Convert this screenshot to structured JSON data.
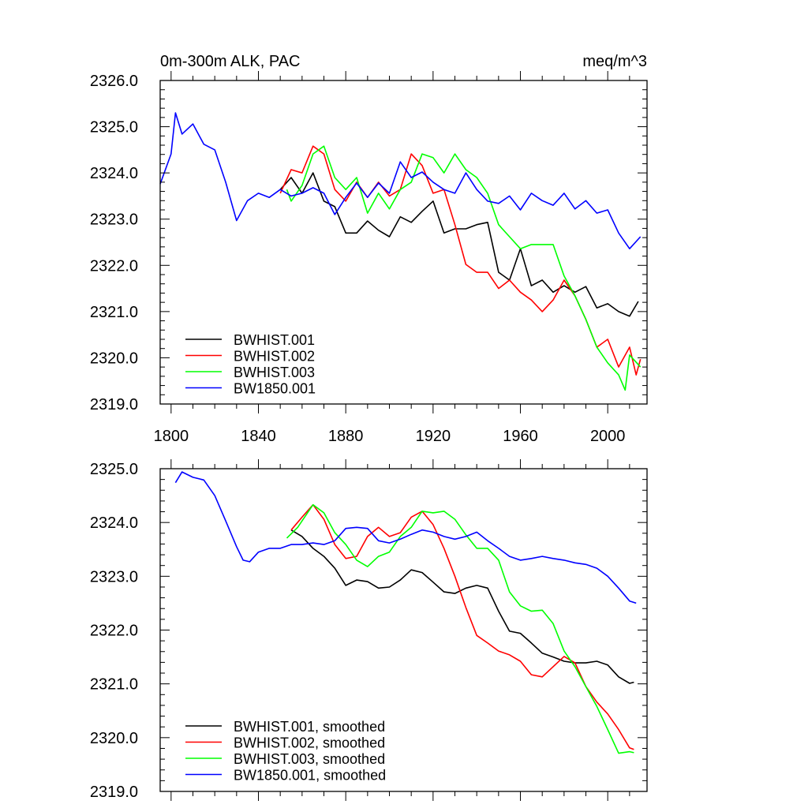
{
  "chart_data": [
    {
      "type": "line",
      "title": "0m-300m ALK, PAC",
      "title_right": "meq/m^3",
      "xlim": [
        1795,
        2018
      ],
      "ylim": [
        2319,
        2326
      ],
      "xticks": [
        1800,
        1840,
        1880,
        1920,
        1960,
        2000
      ],
      "xtick_labels": [
        "1800",
        "1840",
        "1880",
        "1920",
        "1960",
        "2000"
      ],
      "yticks": [
        2319,
        2320,
        2321,
        2322,
        2323,
        2324,
        2325,
        2326
      ],
      "ytick_labels": [
        "2319.0",
        "2320.0",
        "2321.0",
        "2322.0",
        "2323.0",
        "2324.0",
        "2325.0",
        "2326.0"
      ],
      "legend_position": "bottom-left",
      "grid": false,
      "series": [
        {
          "name": "BWHIST.001",
          "color": "#000000",
          "x": [
            1850,
            1855,
            1860,
            1865,
            1870,
            1875,
            1880,
            1885,
            1890,
            1895,
            1900,
            1905,
            1910,
            1915,
            1920,
            1925,
            1930,
            1935,
            1940,
            1945,
            1950,
            1955,
            1960,
            1965,
            1970,
            1975,
            1980,
            1985,
            1990,
            1995,
            2000,
            2005,
            2010,
            2014
          ],
          "y": [
            2323.64,
            2323.9,
            2323.56,
            2324.0,
            2323.39,
            2323.27,
            2322.7,
            2322.7,
            2322.96,
            2322.76,
            2322.62,
            2323.05,
            2322.93,
            2323.17,
            2323.39,
            2322.7,
            2322.79,
            2322.79,
            2322.88,
            2322.93,
            2321.85,
            2321.68,
            2322.36,
            2321.56,
            2321.68,
            2321.42,
            2321.56,
            2321.42,
            2321.54,
            2321.08,
            2321.17,
            2321.0,
            2320.9,
            2321.22
          ]
        },
        {
          "name": "BWHIST.002",
          "color": "#ff0000",
          "x": [
            1850,
            1855,
            1860,
            1865,
            1870,
            1875,
            1880,
            1885,
            1890,
            1895,
            1900,
            1905,
            1910,
            1915,
            1920,
            1925,
            1930,
            1935,
            1940,
            1945,
            1950,
            1955,
            1960,
            1965,
            1970,
            1975,
            1980,
            1985,
            1990,
            1995,
            2000,
            2005,
            2010,
            2013,
            2015
          ],
          "y": [
            2323.56,
            2324.07,
            2324.0,
            2324.58,
            2324.41,
            2323.64,
            2323.39,
            2323.8,
            2323.47,
            2323.8,
            2323.5,
            2323.64,
            2324.41,
            2324.16,
            2323.56,
            2323.64,
            2322.88,
            2322.02,
            2321.85,
            2321.85,
            2321.5,
            2321.68,
            2321.42,
            2321.25,
            2321.0,
            2321.25,
            2321.68,
            2321.34,
            2320.83,
            2320.23,
            2320.4,
            2319.8,
            2320.23,
            2319.63,
            2319.97
          ]
        },
        {
          "name": "BWHIST.003",
          "color": "#00ff00",
          "x": [
            1853,
            1855,
            1860,
            1865,
            1870,
            1875,
            1880,
            1885,
            1890,
            1895,
            1900,
            1905,
            1910,
            1915,
            1920,
            1925,
            1930,
            1935,
            1940,
            1945,
            1950,
            1955,
            1960,
            1965,
            1970,
            1975,
            1980,
            1985,
            1990,
            1995,
            2000,
            2005,
            2008,
            2010,
            2015
          ],
          "y": [
            2323.64,
            2323.39,
            2323.73,
            2324.41,
            2324.58,
            2323.9,
            2323.64,
            2323.9,
            2323.13,
            2323.56,
            2323.22,
            2323.64,
            2323.8,
            2324.41,
            2324.33,
            2324.0,
            2324.41,
            2324.07,
            2323.9,
            2323.56,
            2322.88,
            2322.62,
            2322.36,
            2322.45,
            2322.45,
            2322.45,
            2321.77,
            2321.34,
            2320.83,
            2320.23,
            2319.89,
            2319.63,
            2319.3,
            2320.06,
            2319.8
          ]
        },
        {
          "name": "BW1850.001",
          "color": "#0000ff",
          "x": [
            1795,
            1800,
            1802,
            1805,
            1810,
            1815,
            1820,
            1825,
            1830,
            1835,
            1840,
            1845,
            1850,
            1855,
            1860,
            1865,
            1870,
            1875,
            1880,
            1885,
            1890,
            1895,
            1900,
            1905,
            1910,
            1915,
            1920,
            1925,
            1930,
            1935,
            1940,
            1945,
            1950,
            1955,
            1960,
            1965,
            1970,
            1975,
            1980,
            1985,
            1990,
            1995,
            2000,
            2005,
            2010,
            2015
          ],
          "y": [
            2323.76,
            2324.41,
            2325.3,
            2324.84,
            2325.06,
            2324.62,
            2324.5,
            2323.8,
            2322.97,
            2323.4,
            2323.56,
            2323.47,
            2323.64,
            2323.5,
            2323.56,
            2323.68,
            2323.56,
            2323.1,
            2323.47,
            2323.78,
            2323.47,
            2323.78,
            2323.56,
            2324.24,
            2323.9,
            2324.02,
            2323.8,
            2323.64,
            2323.56,
            2324.0,
            2323.64,
            2323.39,
            2323.34,
            2323.5,
            2323.2,
            2323.56,
            2323.4,
            2323.3,
            2323.56,
            2323.22,
            2323.4,
            2323.13,
            2323.2,
            2322.7,
            2322.36,
            2322.62
          ]
        }
      ]
    },
    {
      "type": "line",
      "xlim": [
        1795,
        2018
      ],
      "ylim": [
        2319,
        2325
      ],
      "xticks": [
        1800,
        1840,
        1880,
        1920,
        1960,
        2000
      ],
      "yticks": [
        2319,
        2320,
        2321,
        2322,
        2323,
        2324,
        2325
      ],
      "ytick_labels": [
        "2319.0",
        "2320.0",
        "2321.0",
        "2322.0",
        "2323.0",
        "2324.0",
        "2325.0"
      ],
      "legend_position": "bottom-left",
      "grid": false,
      "series": [
        {
          "name": "BWHIST.001, smoothed",
          "color": "#000000",
          "x": [
            1855,
            1860,
            1865,
            1870,
            1875,
            1880,
            1885,
            1890,
            1895,
            1900,
            1905,
            1910,
            1915,
            1920,
            1925,
            1930,
            1935,
            1940,
            1945,
            1950,
            1955,
            1960,
            1965,
            1970,
            1975,
            1980,
            1985,
            1990,
            1995,
            2000,
            2005,
            2010,
            2012
          ],
          "y": [
            2323.86,
            2323.74,
            2323.52,
            2323.37,
            2323.15,
            2322.83,
            2322.93,
            2322.9,
            2322.78,
            2322.8,
            2322.93,
            2323.12,
            2323.07,
            2322.89,
            2322.71,
            2322.68,
            2322.78,
            2322.83,
            2322.78,
            2322.35,
            2321.98,
            2321.94,
            2321.76,
            2321.57,
            2321.5,
            2321.42,
            2321.39,
            2321.39,
            2321.42,
            2321.35,
            2321.13,
            2321.01,
            2321.03
          ]
        },
        {
          "name": "BWHIST.002, smoothed",
          "color": "#ff0000",
          "x": [
            1855,
            1860,
            1865,
            1870,
            1875,
            1880,
            1885,
            1890,
            1895,
            1900,
            1905,
            1910,
            1915,
            1920,
            1925,
            1930,
            1935,
            1940,
            1945,
            1950,
            1955,
            1960,
            1965,
            1970,
            1975,
            1980,
            1985,
            1990,
            1995,
            2000,
            2005,
            2010,
            2012
          ],
          "y": [
            2323.86,
            2324.1,
            2324.33,
            2324.06,
            2323.59,
            2323.33,
            2323.37,
            2323.74,
            2323.91,
            2323.74,
            2323.81,
            2324.1,
            2324.21,
            2323.96,
            2323.52,
            2323.0,
            2322.42,
            2321.9,
            2321.76,
            2321.61,
            2321.54,
            2321.42,
            2321.17,
            2321.13,
            2321.32,
            2321.51,
            2321.39,
            2320.95,
            2320.66,
            2320.44,
            2320.15,
            2319.81,
            2319.78
          ]
        },
        {
          "name": "BWHIST.003, smoothed",
          "color": "#00ff00",
          "x": [
            1853,
            1858,
            1865,
            1870,
            1875,
            1880,
            1885,
            1890,
            1895,
            1900,
            1905,
            1910,
            1915,
            1920,
            1925,
            1930,
            1935,
            1940,
            1945,
            1950,
            1955,
            1960,
            1965,
            1970,
            1975,
            1980,
            1985,
            1990,
            1995,
            2000,
            2005,
            2010,
            2012
          ],
          "y": [
            2323.71,
            2323.91,
            2324.33,
            2324.18,
            2323.81,
            2323.59,
            2323.3,
            2323.18,
            2323.37,
            2323.45,
            2323.74,
            2323.91,
            2324.21,
            2324.18,
            2324.21,
            2324.06,
            2323.77,
            2323.52,
            2323.52,
            2323.3,
            2322.71,
            2322.45,
            2322.35,
            2322.37,
            2322.12,
            2321.61,
            2321.32,
            2320.95,
            2320.58,
            2320.15,
            2319.71,
            2319.74,
            2319.72
          ]
        },
        {
          "name": "BW1850.001, smoothed",
          "color": "#0000ff",
          "x": [
            1802,
            1805,
            1810,
            1815,
            1820,
            1825,
            1830,
            1833,
            1836,
            1840,
            1845,
            1850,
            1855,
            1860,
            1865,
            1870,
            1875,
            1880,
            1885,
            1890,
            1895,
            1900,
            1905,
            1910,
            1915,
            1920,
            1925,
            1930,
            1935,
            1940,
            1945,
            1950,
            1955,
            1960,
            1965,
            1970,
            1975,
            1980,
            1985,
            1990,
            1995,
            2000,
            2005,
            2010,
            2013
          ],
          "y": [
            2324.74,
            2324.94,
            2324.84,
            2324.79,
            2324.5,
            2324.03,
            2323.55,
            2323.3,
            2323.27,
            2323.45,
            2323.52,
            2323.52,
            2323.59,
            2323.59,
            2323.62,
            2323.59,
            2323.66,
            2323.89,
            2323.91,
            2323.89,
            2323.66,
            2323.62,
            2323.69,
            2323.78,
            2323.86,
            2323.82,
            2323.74,
            2323.69,
            2323.74,
            2323.82,
            2323.66,
            2323.52,
            2323.37,
            2323.3,
            2323.33,
            2323.37,
            2323.33,
            2323.3,
            2323.25,
            2323.22,
            2323.15,
            2323.0,
            2322.78,
            2322.54,
            2322.5
          ]
        }
      ]
    }
  ]
}
